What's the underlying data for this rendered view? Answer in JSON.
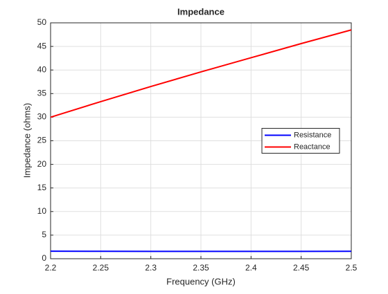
{
  "chart_data": {
    "type": "line",
    "title": "Impedance",
    "xlabel": "Frequency (GHz)",
    "ylabel": "Impedance (ohms)",
    "x": [
      2.2,
      2.25,
      2.3,
      2.35,
      2.4,
      2.45,
      2.5
    ],
    "series": [
      {
        "name": "Resistance",
        "color": "#0000ff",
        "values": [
          1.6,
          1.58,
          1.56,
          1.55,
          1.55,
          1.56,
          1.58
        ]
      },
      {
        "name": "Reactance",
        "color": "#ff0000",
        "values": [
          30,
          33.3,
          36.5,
          39.6,
          42.6,
          45.6,
          48.5
        ]
      }
    ],
    "xlim": [
      2.2,
      2.5
    ],
    "xticks": [
      2.2,
      2.25,
      2.3,
      2.35,
      2.4,
      2.45,
      2.5
    ],
    "ylim": [
      0,
      50
    ],
    "yticks": [
      0,
      5,
      10,
      15,
      20,
      25,
      30,
      35,
      40,
      45,
      50
    ],
    "grid": true,
    "legend": "east"
  }
}
